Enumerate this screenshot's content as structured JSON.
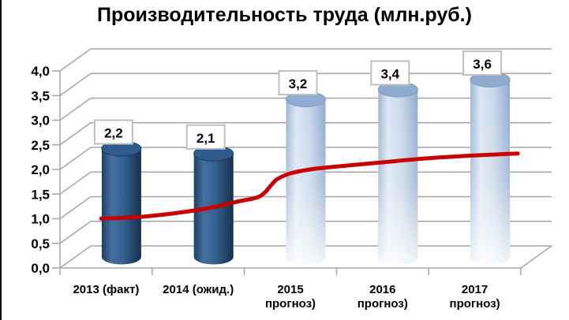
{
  "chart_data": {
    "type": "bar",
    "subtype": "3d-cylinder-columns-with-trend-line",
    "title": "Производительность труда (млн.руб.)",
    "categories": [
      "2013 (факт)",
      "2014 (ожид.)",
      "2015 прогноз)",
      "2016 прогноз)",
      "2017 прогноз)"
    ],
    "category_label_lines": [
      [
        "2013 (факт)"
      ],
      [
        "2014 (ожид.)"
      ],
      [
        "2015",
        "прогноз)"
      ],
      [
        "2016",
        "прогноз)"
      ],
      [
        "2017",
        "прогноз)"
      ]
    ],
    "values": [
      2.2,
      2.1,
      3.2,
      3.4,
      3.6
    ],
    "data_labels": [
      "2,2",
      "2,1",
      "3,2",
      "3,4",
      "3,6"
    ],
    "bar_styles": [
      "dark",
      "dark",
      "light",
      "light",
      "light"
    ],
    "trend_line": {
      "color": "#C90000",
      "points_category_value": [
        [
          0.28,
          0.78
        ],
        [
          0.75,
          0.82
        ],
        [
          1.35,
          0.96
        ],
        [
          1.75,
          1.12
        ],
        [
          2.0,
          1.23
        ],
        [
          2.13,
          1.47
        ],
        [
          2.19,
          1.58
        ],
        [
          2.34,
          1.7
        ],
        [
          2.6,
          1.79
        ],
        [
          3.03,
          1.87
        ],
        [
          3.33,
          1.92
        ],
        [
          3.8,
          2.0
        ],
        [
          4.32,
          2.06
        ],
        [
          4.8,
          2.1
        ]
      ]
    },
    "y_axis": {
      "min": 0,
      "max": 4,
      "step": 0.5,
      "tick_labels": [
        "0,0",
        "0,5",
        "1,0",
        "1,5",
        "2,0",
        "2,5",
        "3,0",
        "3,5",
        "4,0"
      ]
    },
    "xlabel": "",
    "ylabel": "",
    "grid": true,
    "legend": "none",
    "colors": {
      "dark_bar_edge": "#1F3F63",
      "dark_bar_highlight": "#44719F",
      "dark_bar_mid": "#33608E",
      "dark_bar_shadow": "#16304E",
      "dark_bar_top": "#2F5C8C",
      "dark_bar_top_stroke": "#1B3758",
      "light_bar_edge": "#9AB3D5",
      "light_bar_highlight": "#DCE6F3",
      "light_bar_mid": "#C6D6EA",
      "light_bar_shadow": "#8FA9CC",
      "light_bar_top": "#8FACD0",
      "light_bar_top_stroke": "#7E9CBE",
      "trend_line": "#C90000",
      "grid_line": "#A6A6A6",
      "data_label_box_border": "#BFBFBF",
      "data_label_box_fill": "#FFFFFF",
      "text": "#000000",
      "background": "#FFFFFF",
      "page_left_border": "#000000"
    }
  }
}
